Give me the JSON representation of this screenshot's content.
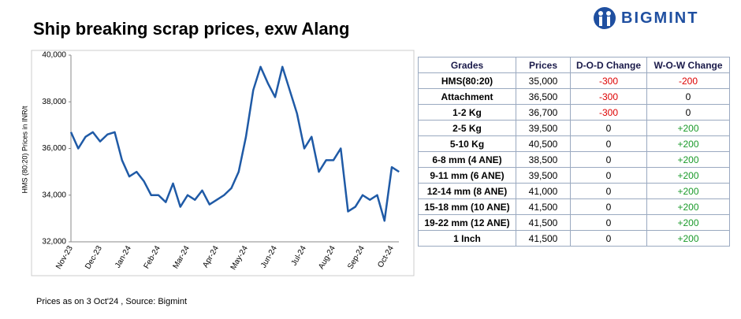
{
  "header": {
    "title": "Ship breaking scrap prices, exw Alang",
    "logo": "BIGMINT"
  },
  "chart_data": {
    "type": "line",
    "y_label": "HMS (80:20) Prices in INR/t",
    "categories": [
      "Nov-23",
      null,
      null,
      null,
      "Dec-23",
      null,
      null,
      null,
      "Jan-24",
      null,
      null,
      null,
      "Feb-24",
      null,
      null,
      null,
      "Mar-24",
      null,
      null,
      null,
      "Apr-24",
      null,
      null,
      null,
      "May-24",
      null,
      null,
      null,
      "Jun-24",
      null,
      null,
      null,
      "Jul-24",
      null,
      null,
      null,
      "Aug-24",
      null,
      null,
      null,
      "Sep-24",
      null,
      null,
      null,
      "Oct-24",
      null
    ],
    "series": [
      {
        "name": "HMS (80:20)",
        "color": "#1f5aa6",
        "values": [
          36700,
          36000,
          36500,
          36700,
          36300,
          36600,
          36700,
          35500,
          34800,
          35000,
          34600,
          34000,
          34000,
          33700,
          34500,
          33500,
          34000,
          33800,
          34200,
          33600,
          33800,
          34000,
          34300,
          35000,
          36500,
          38500,
          39500,
          38800,
          38200,
          39500,
          38500,
          37500,
          36000,
          36500,
          35000,
          35500,
          35500,
          36000,
          33300,
          33500,
          34000,
          33800,
          34000,
          32900,
          35200,
          35000
        ]
      }
    ],
    "ylim": [
      32000,
      40000
    ],
    "yticks": [
      {
        "value": 32000,
        "label": "32,000"
      },
      {
        "value": 34000,
        "label": "34,000"
      },
      {
        "value": 36000,
        "label": "36,000"
      },
      {
        "value": 38000,
        "label": "38,000"
      },
      {
        "value": 40000,
        "label": "40,000"
      }
    ],
    "grid": false
  },
  "table": {
    "columns": [
      "Grades",
      "Prices",
      "D-O-D Change",
      "W-O-W Change"
    ],
    "rows": [
      [
        "HMS(80:20)",
        "35,000",
        "-300",
        "-200"
      ],
      [
        "Attachment",
        "36,500",
        "-300",
        "0"
      ],
      [
        "1-2 Kg",
        "36,700",
        "-300",
        "0"
      ],
      [
        "2-5 Kg",
        "39,500",
        "0",
        "+200"
      ],
      [
        "5-10 Kg",
        "40,500",
        "0",
        "+200"
      ],
      [
        "6-8 mm (4 ANE)",
        "38,500",
        "0",
        "+200"
      ],
      [
        "9-11 mm (6 ANE)",
        "39,500",
        "0",
        "+200"
      ],
      [
        "12-14 mm (8 ANE)",
        "41,000",
        "0",
        "+200"
      ],
      [
        "15-18 mm (10 ANE)",
        "41,500",
        "0",
        "+200"
      ],
      [
        "19-22 mm (12 ANE)",
        "41,500",
        "0",
        "+200"
      ],
      [
        "1 Inch",
        "41,500",
        "0",
        "+200"
      ]
    ]
  },
  "footnote": "Prices as on 3 Oct'24 , Source: Bigmint"
}
